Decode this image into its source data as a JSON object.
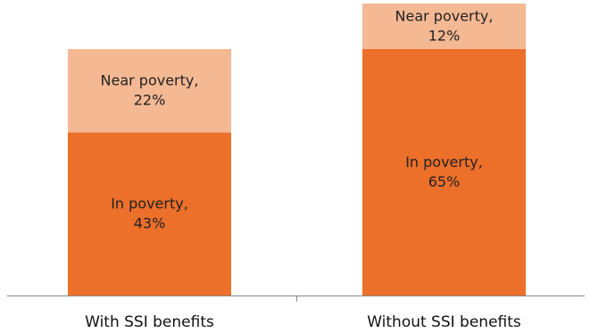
{
  "chart_data": {
    "type": "bar",
    "stacked": true,
    "title": "",
    "xlabel": "",
    "ylabel": "",
    "ylim": [
      0,
      77
    ],
    "grid": false,
    "legend": "none",
    "categories": [
      "With SSI benefits",
      "Without SSI benefits"
    ],
    "series": [
      {
        "key": "in_poverty",
        "values": [
          43,
          65
        ],
        "labels": [
          [
            "In poverty,",
            "43%"
          ],
          [
            "In poverty,",
            "65%"
          ]
        ],
        "color": "#EC6F2A"
      },
      {
        "key": "near_poverty",
        "values": [
          22,
          12
        ],
        "labels": [
          [
            "Near poverty,",
            "22%"
          ],
          [
            "Near poverty,",
            "12%"
          ]
        ],
        "color": "#F4B893"
      }
    ],
    "axis_color": "#888888"
  }
}
